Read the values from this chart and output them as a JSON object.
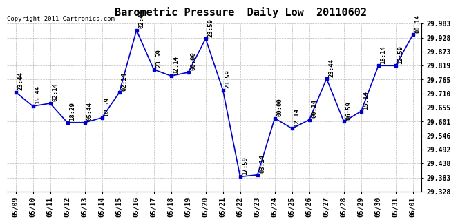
{
  "title": "Barometric Pressure  Daily Low  20110602",
  "copyright": "Copyright 2011 Cartronics.com",
  "dates": [
    "05/09",
    "05/10",
    "05/11",
    "05/12",
    "05/13",
    "05/14",
    "05/15",
    "05/16",
    "05/17",
    "05/18",
    "05/19",
    "05/20",
    "05/21",
    "05/22",
    "05/23",
    "05/24",
    "05/25",
    "05/26",
    "05/27",
    "05/28",
    "05/29",
    "05/30",
    "05/31",
    "06/01"
  ],
  "values": [
    29.716,
    29.661,
    29.672,
    29.597,
    29.597,
    29.616,
    29.714,
    29.957,
    29.804,
    29.779,
    29.793,
    29.924,
    29.724,
    29.386,
    29.393,
    29.614,
    29.574,
    29.608,
    29.768,
    29.601,
    29.641,
    29.819,
    29.819,
    29.94
  ],
  "labels": [
    "23:44",
    "15:44",
    "02:14",
    "18:29",
    "05:44",
    "02:59",
    "02:14",
    "02:44",
    "23:59",
    "02:14",
    "00:00",
    "23:59",
    "23:59",
    "17:59",
    "03:14",
    "00:00",
    "12:14",
    "00:14",
    "23:44",
    "06:59",
    "15:14",
    "18:14",
    "12:59",
    "00:14"
  ],
  "ylim_min": 29.328,
  "ylim_max": 29.983,
  "yticks": [
    29.328,
    29.383,
    29.438,
    29.492,
    29.546,
    29.601,
    29.655,
    29.71,
    29.765,
    29.819,
    29.873,
    29.928,
    29.983
  ],
  "line_color": "#0000cc",
  "marker_color": "#0000cc",
  "bg_color": "#ffffff",
  "grid_color": "#bbbbbb",
  "title_fontsize": 11,
  "label_fontsize": 6.5,
  "tick_fontsize": 7,
  "copyright_fontsize": 6.5
}
